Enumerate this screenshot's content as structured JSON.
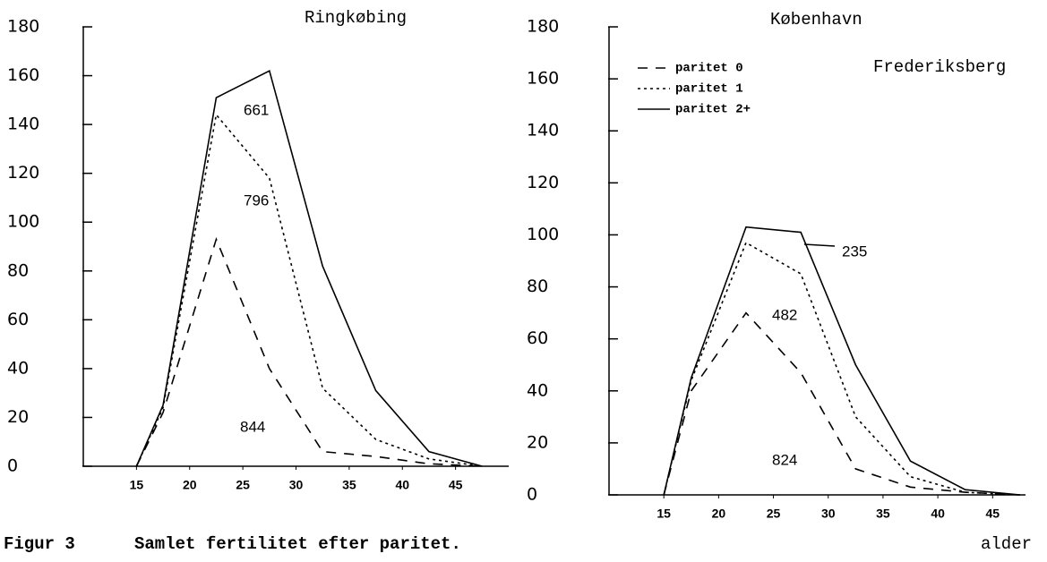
{
  "chart_data": [
    {
      "type": "line",
      "title": "Ringkøbing",
      "x": [
        15,
        17.5,
        22.5,
        27.5,
        32.5,
        37.5,
        42.5,
        47.5
      ],
      "series": [
        {
          "name": "paritet 0",
          "color": "#000000",
          "dash": "dashed",
          "values": [
            0,
            22,
            93,
            40,
            6,
            4,
            1,
            0
          ]
        },
        {
          "name": "paritet 1",
          "color": "#000000",
          "dash": "dotted",
          "values": [
            0,
            24,
            144,
            118,
            32,
            11,
            3,
            0
          ]
        },
        {
          "name": "paritet 2+",
          "color": "#000000",
          "dash": "solid",
          "values": [
            0,
            25,
            151,
            162,
            82,
            31,
            6,
            0
          ]
        }
      ],
      "annotations": [
        "661",
        "796",
        "844"
      ],
      "xlim": [
        10,
        50
      ],
      "xticks": [
        15,
        20,
        25,
        30,
        35,
        40,
        45
      ],
      "ylim": [
        0,
        180
      ],
      "yticks": [
        0,
        20,
        40,
        60,
        80,
        100,
        120,
        140,
        160,
        180
      ],
      "legend": false
    },
    {
      "type": "line",
      "title": "København",
      "subtitle": "Frederiksberg",
      "x": [
        15,
        17.5,
        22.5,
        27.5,
        32.5,
        37.5,
        42.5,
        47.5
      ],
      "series": [
        {
          "name": "paritet 0",
          "color": "#000000",
          "dash": "dashed",
          "values": [
            0,
            40,
            70,
            47,
            10,
            3,
            1,
            0
          ]
        },
        {
          "name": "paritet 1",
          "color": "#000000",
          "dash": "dotted",
          "values": [
            0,
            44,
            97,
            85,
            30,
            7,
            1,
            0
          ]
        },
        {
          "name": "paritet 2+",
          "color": "#000000",
          "dash": "solid",
          "values": [
            0,
            45,
            103,
            101,
            50,
            13,
            2,
            0
          ]
        }
      ],
      "annotations": [
        "235",
        "482",
        "824"
      ],
      "xlim": [
        10,
        48
      ],
      "xticks": [
        15,
        20,
        25,
        30,
        35,
        40,
        45
      ],
      "ylim": [
        0,
        180
      ],
      "yticks": [
        0,
        20,
        40,
        60,
        80,
        100,
        120,
        140,
        160,
        180
      ],
      "legend": "upper left"
    }
  ],
  "caption": {
    "figure": "Figur 3",
    "text": "Samlet fertilitet efter paritet.",
    "xlabel": "alder"
  }
}
